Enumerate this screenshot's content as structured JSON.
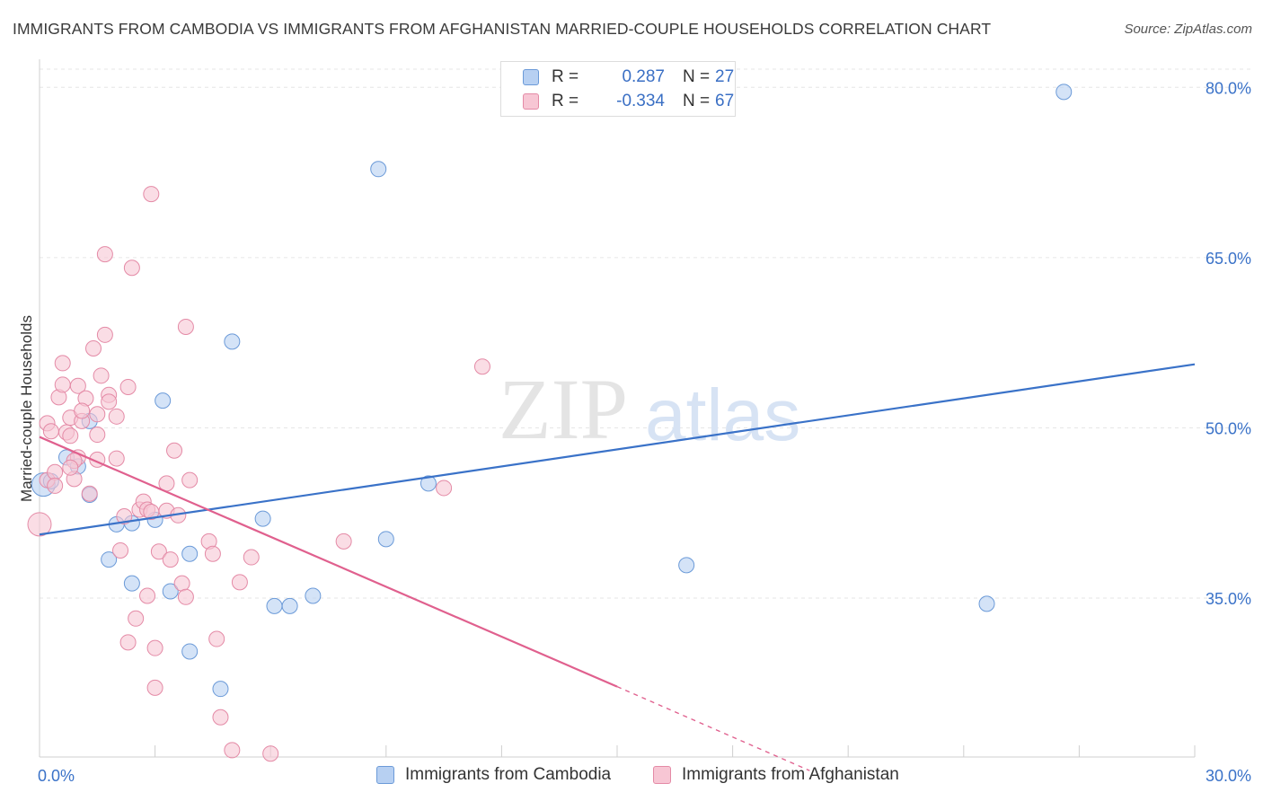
{
  "title": "IMMIGRANTS FROM CAMBODIA VS IMMIGRANTS FROM AFGHANISTAN MARRIED-COUPLE HOUSEHOLDS CORRELATION CHART",
  "source": "Source: ZipAtlas.com",
  "watermark": {
    "zip": "ZIP",
    "atlas": "atlas"
  },
  "legend": {
    "cambodia": {
      "r_label": "R =",
      "r_value": "0.287",
      "n_label": "N =",
      "n_value": "27"
    },
    "afghanistan": {
      "r_label": "R =",
      "r_value": "-0.334",
      "n_label": "N =",
      "n_value": "67"
    }
  },
  "bottom_legend": {
    "cambodia": "Immigrants from Cambodia",
    "afghanistan": "Immigrants from Afghanistan"
  },
  "colors": {
    "cambodia_fill": "#b7d0f2",
    "cambodia_stroke": "#6b9ad8",
    "cambodia_line": "#3a72c8",
    "afghanistan_fill": "#f7c6d4",
    "afghanistan_stroke": "#e48aa6",
    "afghanistan_line": "#e0608e",
    "tick_label": "#3a72c8",
    "grid": "#e6e6e6"
  },
  "chart_data": {
    "type": "scatter",
    "ylabel": "Married-couple Households",
    "xlim": [
      0,
      30
    ],
    "ylim": [
      21,
      82
    ],
    "x_ticks": [
      {
        "value": 0,
        "label": "0.0%"
      },
      {
        "value": 30,
        "label": "30.0%"
      }
    ],
    "y_ticks": [
      {
        "value": 35,
        "label": "35.0%"
      },
      {
        "value": 50,
        "label": "50.0%"
      },
      {
        "value": 65,
        "label": "65.0%"
      },
      {
        "value": 80,
        "label": "80.0%"
      }
    ],
    "grid": true,
    "series": [
      {
        "name": "Immigrants from Cambodia",
        "key": "cambodia",
        "trend": {
          "x": [
            0,
            30
          ],
          "y": [
            40.6,
            55.6
          ],
          "dashed_from": null
        },
        "points": [
          [
            0.1,
            45.0
          ],
          [
            0.7,
            47.4
          ],
          [
            1.0,
            46.6
          ],
          [
            1.3,
            50.6
          ],
          [
            1.3,
            44.1
          ],
          [
            1.8,
            38.4
          ],
          [
            2.0,
            41.5
          ],
          [
            2.4,
            36.3
          ],
          [
            2.4,
            41.6
          ],
          [
            3.0,
            41.9
          ],
          [
            3.2,
            52.4
          ],
          [
            3.4,
            35.6
          ],
          [
            3.9,
            30.3
          ],
          [
            3.9,
            38.9
          ],
          [
            4.7,
            27.0
          ],
          [
            5.0,
            57.6
          ],
          [
            5.8,
            42.0
          ],
          [
            6.1,
            34.3
          ],
          [
            6.5,
            34.3
          ],
          [
            7.1,
            35.2
          ],
          [
            8.8,
            72.8
          ],
          [
            9.0,
            40.2
          ],
          [
            10.1,
            45.1
          ],
          [
            16.8,
            37.9
          ],
          [
            24.6,
            34.5
          ],
          [
            26.6,
            79.6
          ],
          [
            0.3,
            45.3
          ]
        ]
      },
      {
        "name": "Immigrants from Afghanistan",
        "key": "afghanistan",
        "trend": {
          "x": [
            0,
            15
          ],
          "y": [
            49.2,
            27.2
          ],
          "dashed_from": 15,
          "dashed_x_end": 20,
          "dashed_y_end": 19.8
        },
        "points": [
          [
            0.0,
            41.5
          ],
          [
            0.2,
            50.4
          ],
          [
            0.2,
            45.4
          ],
          [
            0.3,
            49.7
          ],
          [
            0.4,
            46.1
          ],
          [
            0.5,
            52.7
          ],
          [
            0.6,
            53.8
          ],
          [
            0.6,
            55.7
          ],
          [
            0.7,
            49.6
          ],
          [
            0.8,
            50.9
          ],
          [
            0.8,
            49.3
          ],
          [
            0.9,
            45.5
          ],
          [
            1.0,
            53.7
          ],
          [
            1.0,
            47.4
          ],
          [
            1.1,
            50.6
          ],
          [
            1.2,
            52.6
          ],
          [
            1.3,
            44.2
          ],
          [
            1.4,
            57.0
          ],
          [
            1.5,
            51.2
          ],
          [
            1.5,
            49.4
          ],
          [
            1.6,
            54.6
          ],
          [
            1.7,
            58.2
          ],
          [
            1.7,
            65.3
          ],
          [
            1.8,
            52.9
          ],
          [
            1.8,
            52.3
          ],
          [
            2.0,
            51.0
          ],
          [
            2.0,
            47.3
          ],
          [
            2.1,
            39.2
          ],
          [
            2.2,
            42.2
          ],
          [
            2.3,
            31.1
          ],
          [
            2.3,
            53.6
          ],
          [
            2.4,
            64.1
          ],
          [
            2.5,
            33.2
          ],
          [
            2.6,
            42.8
          ],
          [
            2.7,
            43.5
          ],
          [
            2.8,
            42.8
          ],
          [
            2.8,
            35.2
          ],
          [
            2.9,
            70.6
          ],
          [
            3.0,
            30.6
          ],
          [
            3.0,
            27.1
          ],
          [
            3.1,
            39.1
          ],
          [
            3.3,
            42.7
          ],
          [
            3.3,
            45.1
          ],
          [
            3.4,
            38.4
          ],
          [
            3.5,
            48.0
          ],
          [
            3.6,
            42.3
          ],
          [
            3.7,
            36.3
          ],
          [
            3.8,
            35.1
          ],
          [
            3.8,
            58.9
          ],
          [
            3.9,
            45.4
          ],
          [
            4.4,
            40.0
          ],
          [
            4.5,
            38.9
          ],
          [
            4.6,
            31.4
          ],
          [
            4.7,
            24.5
          ],
          [
            5.0,
            21.6
          ],
          [
            5.2,
            36.4
          ],
          [
            5.5,
            38.6
          ],
          [
            6.0,
            21.3
          ],
          [
            7.9,
            40.0
          ],
          [
            11.5,
            55.4
          ],
          [
            10.5,
            44.7
          ],
          [
            0.9,
            47.1
          ],
          [
            1.5,
            47.2
          ],
          [
            2.9,
            42.6
          ],
          [
            1.1,
            51.5
          ],
          [
            0.4,
            44.9
          ],
          [
            0.8,
            46.5
          ]
        ]
      }
    ]
  }
}
